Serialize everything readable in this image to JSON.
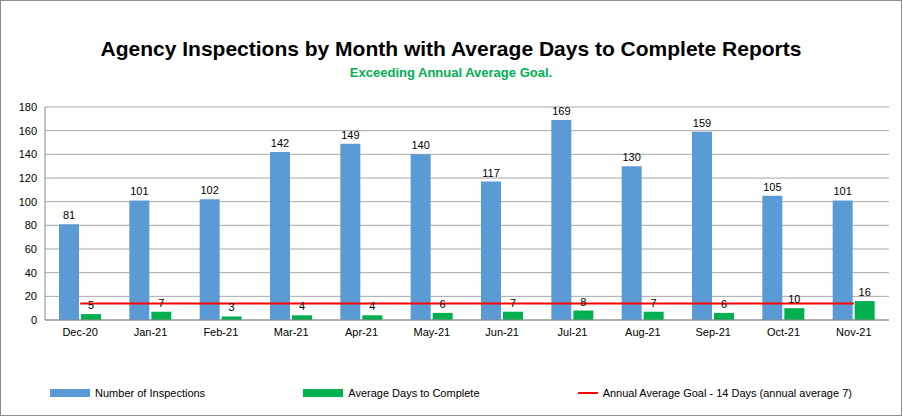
{
  "chart_data": {
    "type": "bar",
    "title": "Agency Inspections by Month with Average Days to Complete Reports",
    "subtitle": "Exceeding Annual Average Goal.",
    "categories": [
      "Dec-20",
      "Jan-21",
      "Feb-21",
      "Mar-21",
      "Apr-21",
      "May-21",
      "Jun-21",
      "Jul-21",
      "Aug-21",
      "Sep-21",
      "Oct-21",
      "Nov-21"
    ],
    "series": [
      {
        "name": "Number of Inspections",
        "color": "#5b9bd5",
        "values": [
          81,
          101,
          102,
          142,
          149,
          140,
          117,
          169,
          130,
          159,
          105,
          101
        ]
      },
      {
        "name": "Average Days to Complete",
        "color": "#00b050",
        "values": [
          5,
          7,
          3,
          4,
          4,
          6,
          7,
          8,
          7,
          6,
          10,
          16
        ]
      },
      {
        "name": "Annual Average Goal - 14 Days (annual average 7)",
        "type": "line",
        "color": "#ff0000",
        "data_labels": false,
        "values": [
          14,
          14,
          14,
          14,
          14,
          14,
          14,
          14,
          14,
          14,
          14,
          14
        ]
      }
    ],
    "ylim": [
      0,
      180
    ],
    "yticks": [
      0,
      20,
      40,
      60,
      80,
      100,
      120,
      140,
      160,
      180
    ],
    "grid": true,
    "legend": "bottom",
    "data_labels": true
  }
}
